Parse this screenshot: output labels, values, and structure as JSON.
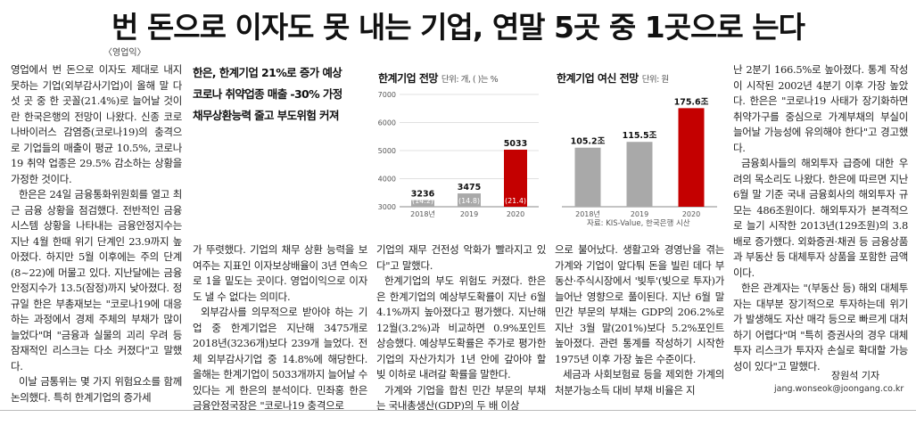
{
  "article": {
    "headline": "번 돈으로 이자도 못 내는 기업, 연말 5곳 중 1곳으로 는다",
    "caption": "〈영업익〉",
    "subhead": [
      "한은, 한계기업 21%로 증가 예상",
      "코로나 취약업종 매출 -30% 가정",
      "채무상환능력 줄고 부도위험 커져"
    ],
    "col1": [
      "영업에서 번 돈으로 이자도 제대로 내지 못하는 기업(외부감사기업)이 올해 말 다섯 곳 중 한 곳꼴(21.4%)로 늘어날 것이란 한국은행의 전망이 나왔다. 신종 코로나바이러스 감염증(코로나19)의 충격으로 기업들의 매출이 평균 10.5%, 코로나19 취약 업종은 29.5% 감소하는 상황을 가정한 것이다.",
      "한은은 24일 금융통화위원회를 열고 최근 금융 상황을 점검했다. 전반적인 금융시스템 상황을 나타내는 금융안정지수는 지난 4월 한때 위기 단계인 23.9까지 높아졌다. 하지만 5월 이후에는 주의 단계(8~22)에 머물고 있다. 지난달에는 금융안정지수가 13.5(잠정)까지 낮아졌다. 정규일 한은 부총재보는 \"코로나19에 대응하는 과정에서 경제 주체의 부채가 많이 늘었다\"며 \"금융과 실물의 괴리 우려 등 잠재적인 리스크는 다소 커졌다\"고 말했다.",
      "이날 금통위는 몇 가지 위험요소를 함께 논의했다. 특히 한계기업의 증가세"
    ],
    "col2": [
      "가 뚜렷했다. 기업의 채무 상환 능력을 보여주는 지표인 이자보상배율이 3년 연속으로 1을 밑도는 곳이다. 영업이익으로 이자도 낼 수 없다는 의미다.",
      "외부감사를 의무적으로 받아야 하는 기업 중 한계기업은 지난해 3475개로 2018년(3236개)보다 239개 늘었다. 전체 외부감사기업 중 14.8%에 해당한다. 올해는 한계기업이 5033개까지 늘어날 수 있다는 게 한은의 분석이다. 민좌홍 한은 금융안정국장은 \"코로나19 충격으로"
    ],
    "col3": [
      "기업의 재무 건전성 악화가 빨라지고 있다\"고 말했다.",
      "한계기업의 부도 위험도 커졌다. 한은은 한계기업의 예상부도확률이 지난 6월 4.1%까지 높아졌다고 평가했다. 지난해 12월(3.2%)과 비교하면 0.9%포인트 상승했다. 예상부도확률은 주가로 평가한 기업의 자산가치가 1년 안에 갚아야 할 빚 이하로 내려갈 확률을 말한다.",
      "가계와 기업을 합친 민간 부문의 부채는 국내총생산(GDP)의 두 배 이상"
    ],
    "col4": [
      "으로 불어났다. 생활고와 경영난을 겪는 가계와 기업이 앞다퉈 돈을 빌린 데다 부동산·주식시장에서 '빚투'(빚으로 투자)가 늘어난 영향으로 풀이된다. 지난 6월 말 민간 부문의 부채는 GDP의 206.2%로 지난 3월 말(201%)보다 5.2%포인트 높아졌다. 관련 통계를 작성하기 시작한 1975년 이후 가장 높은 수준이다.",
      "세금과 사회보험료 등을 제외한 가계의 처분가능소득 대비 부채 비율은 지"
    ],
    "col5": [
      "난 2분기 166.5%로 높아졌다. 통계 작성이 시작된 2002년 4분기 이후 가장 높았다. 한은은 \"코로나19 사태가 장기화하면 취약가구를 중심으로 가계부채의 부실이 늘어날 가능성에 유의해야 한다\"고 경고했다.",
      "금융회사들의 해외투자 급증에 대한 우려의 목소리도 나왔다. 한은에 따르면 지난 6월 말 기준 국내 금융회사의 해외투자 규모는 486조원이다. 해외투자가 본격적으로 늘기 시작한 2013년(129조원)의 3.8배로 증가했다. 외화증권·채권 등 금융상품과 부동산 등 대체투자 상품을 포함한 금액이다.",
      "한은 관계자는 \"(부동산 등) 해외 대체투자는 대부분 장기적으로 투자하는데 위기가 발생해도 자산 매각 등으로 빠르게 대처하기 어렵다\"며 \"특히 증권사의 경우 대체투자 리스크가 투자자 손실로 확대할 가능성이 있다\"고 말했다."
    ],
    "byline": "장원석 기자",
    "email": "jang.wonseok@joongang.co.kr"
  },
  "colors": {
    "bar": "#a9a9a9",
    "bar_highlight": "#c40000",
    "grid": "#e0e0e0",
    "axis": "#888888"
  },
  "chart_data": [
    {
      "type": "bar",
      "title": "한계기업 전망",
      "unit": "단위: 개, ( )는 %",
      "categories": [
        "2018년",
        "2019",
        "2020"
      ],
      "values": [
        3236,
        3475,
        5033
      ],
      "value_labels": [
        "3236",
        "3475",
        "5033"
      ],
      "sub_labels": [
        "(14.2)",
        "(14.8)",
        "(21.4)"
      ],
      "yticks": [
        "3000",
        "4000",
        "5000",
        "6000",
        "7000"
      ],
      "ylim": [
        3000,
        7000
      ]
    },
    {
      "type": "bar",
      "title": "한계기업 여신 전망",
      "unit": "단위: 원",
      "categories": [
        "2018년",
        "2019",
        "2020"
      ],
      "values": [
        105.2,
        115.5,
        175.6
      ],
      "value_labels": [
        "105.2조",
        "115.5조",
        "175.6조"
      ],
      "ylim": [
        0,
        200
      ]
    }
  ],
  "chart_source": "자료: KIS-Value, 한국은행 시산"
}
